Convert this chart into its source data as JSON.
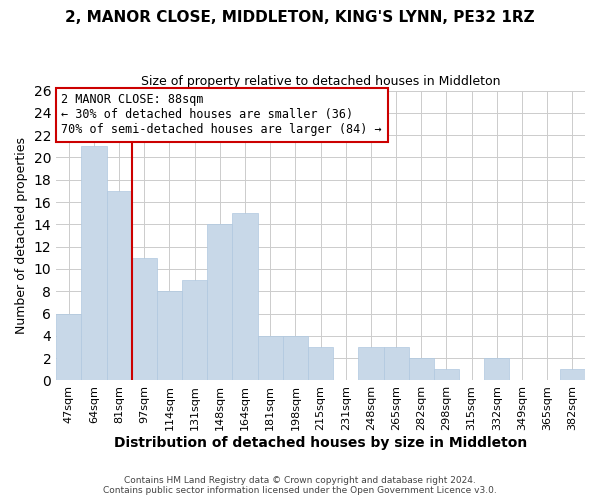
{
  "title": "2, MANOR CLOSE, MIDDLETON, KING'S LYNN, PE32 1RZ",
  "subtitle": "Size of property relative to detached houses in Middleton",
  "xlabel": "Distribution of detached houses by size in Middleton",
  "ylabel": "Number of detached properties",
  "bar_color": "#c8d8e8",
  "bar_edge_color": "#b0c8e0",
  "categories": [
    "47sqm",
    "64sqm",
    "81sqm",
    "97sqm",
    "114sqm",
    "131sqm",
    "148sqm",
    "164sqm",
    "181sqm",
    "198sqm",
    "215sqm",
    "231sqm",
    "248sqm",
    "265sqm",
    "282sqm",
    "298sqm",
    "315sqm",
    "332sqm",
    "349sqm",
    "365sqm",
    "382sqm"
  ],
  "values": [
    6,
    21,
    17,
    11,
    8,
    9,
    14,
    15,
    4,
    4,
    3,
    0,
    3,
    3,
    2,
    1,
    0,
    2,
    0,
    0,
    1
  ],
  "ylim": [
    0,
    26
  ],
  "yticks": [
    0,
    2,
    4,
    6,
    8,
    10,
    12,
    14,
    16,
    18,
    20,
    22,
    24,
    26
  ],
  "vline_x_index": 2,
  "vline_color": "#cc0000",
  "annotation_title": "2 MANOR CLOSE: 88sqm",
  "annotation_line1": "← 30% of detached houses are smaller (36)",
  "annotation_line2": "70% of semi-detached houses are larger (84) →",
  "annotation_box_color": "#ffffff",
  "annotation_box_edge": "#cc0000",
  "footer1": "Contains HM Land Registry data © Crown copyright and database right 2024.",
  "footer2": "Contains public sector information licensed under the Open Government Licence v3.0.",
  "background_color": "#ffffff",
  "grid_color": "#cccccc",
  "figsize": [
    6.0,
    5.0
  ],
  "dpi": 100
}
